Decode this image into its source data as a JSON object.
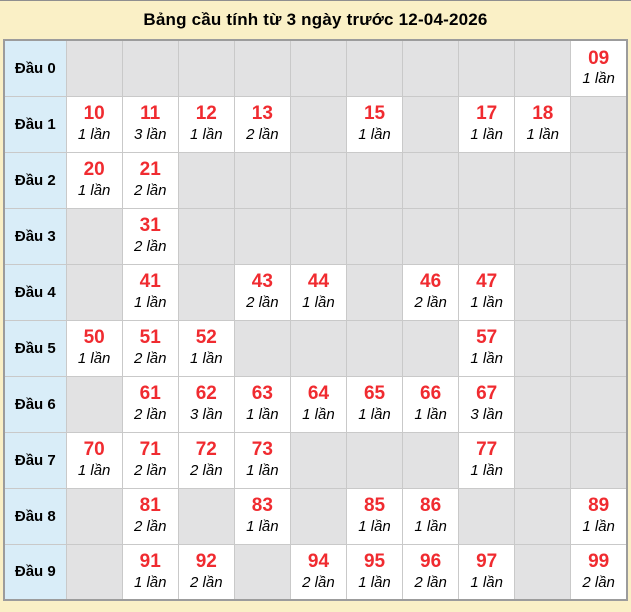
{
  "title": "Bảng cầu tính từ 3 ngày trước 12-04-2026",
  "colors": {
    "page_bg": "#faf0c6",
    "row_header_bg": "#d9edf8",
    "empty_cell_bg": "#e2e2e3",
    "filled_cell_bg": "#ffffff",
    "number_red": "#f02b30",
    "cell_border": "#c9c9c9",
    "outer_border": "#9c9c9c"
  },
  "table": {
    "rows": [
      {
        "label": "Đầu 0",
        "cells": [
          null,
          null,
          null,
          null,
          null,
          null,
          null,
          null,
          null,
          {
            "number": "09",
            "times": "1 lần"
          }
        ]
      },
      {
        "label": "Đầu 1",
        "cells": [
          {
            "number": "10",
            "times": "1 lần"
          },
          {
            "number": "11",
            "times": "3 lần"
          },
          {
            "number": "12",
            "times": "1 lần"
          },
          {
            "number": "13",
            "times": "2 lần"
          },
          null,
          {
            "number": "15",
            "times": "1 lần"
          },
          null,
          {
            "number": "17",
            "times": "1 lần"
          },
          {
            "number": "18",
            "times": "1 lần"
          },
          null
        ]
      },
      {
        "label": "Đầu 2",
        "cells": [
          {
            "number": "20",
            "times": "1 lần"
          },
          {
            "number": "21",
            "times": "2 lần"
          },
          null,
          null,
          null,
          null,
          null,
          null,
          null,
          null
        ]
      },
      {
        "label": "Đầu 3",
        "cells": [
          null,
          {
            "number": "31",
            "times": "2 lần"
          },
          null,
          null,
          null,
          null,
          null,
          null,
          null,
          null
        ]
      },
      {
        "label": "Đầu 4",
        "cells": [
          null,
          {
            "number": "41",
            "times": "1 lần"
          },
          null,
          {
            "number": "43",
            "times": "2 lần"
          },
          {
            "number": "44",
            "times": "1 lần"
          },
          null,
          {
            "number": "46",
            "times": "2 lần"
          },
          {
            "number": "47",
            "times": "1 lần"
          },
          null,
          null
        ]
      },
      {
        "label": "Đầu 5",
        "cells": [
          {
            "number": "50",
            "times": "1 lần"
          },
          {
            "number": "51",
            "times": "2 lần"
          },
          {
            "number": "52",
            "times": "1 lần"
          },
          null,
          null,
          null,
          null,
          {
            "number": "57",
            "times": "1 lần"
          },
          null,
          null
        ]
      },
      {
        "label": "Đầu 6",
        "cells": [
          null,
          {
            "number": "61",
            "times": "2 lần"
          },
          {
            "number": "62",
            "times": "3 lần"
          },
          {
            "number": "63",
            "times": "1 lần"
          },
          {
            "number": "64",
            "times": "1 lần"
          },
          {
            "number": "65",
            "times": "1 lần"
          },
          {
            "number": "66",
            "times": "1 lần"
          },
          {
            "number": "67",
            "times": "3 lần"
          },
          null,
          null
        ]
      },
      {
        "label": "Đầu 7",
        "cells": [
          {
            "number": "70",
            "times": "1 lần"
          },
          {
            "number": "71",
            "times": "2 lần"
          },
          {
            "number": "72",
            "times": "2 lần"
          },
          {
            "number": "73",
            "times": "1 lần"
          },
          null,
          null,
          null,
          {
            "number": "77",
            "times": "1 lần"
          },
          null,
          null
        ]
      },
      {
        "label": "Đầu 8",
        "cells": [
          null,
          {
            "number": "81",
            "times": "2 lần"
          },
          null,
          {
            "number": "83",
            "times": "1 lần"
          },
          null,
          {
            "number": "85",
            "times": "1 lần"
          },
          {
            "number": "86",
            "times": "1 lần"
          },
          null,
          null,
          {
            "number": "89",
            "times": "1 lần"
          }
        ]
      },
      {
        "label": "Đầu 9",
        "cells": [
          null,
          {
            "number": "91",
            "times": "1 lần"
          },
          {
            "number": "92",
            "times": "2 lần"
          },
          null,
          {
            "number": "94",
            "times": "2 lần"
          },
          {
            "number": "95",
            "times": "1 lần"
          },
          {
            "number": "96",
            "times": "2 lần"
          },
          {
            "number": "97",
            "times": "1 lần"
          },
          null,
          {
            "number": "99",
            "times": "2 lần"
          }
        ]
      }
    ]
  }
}
